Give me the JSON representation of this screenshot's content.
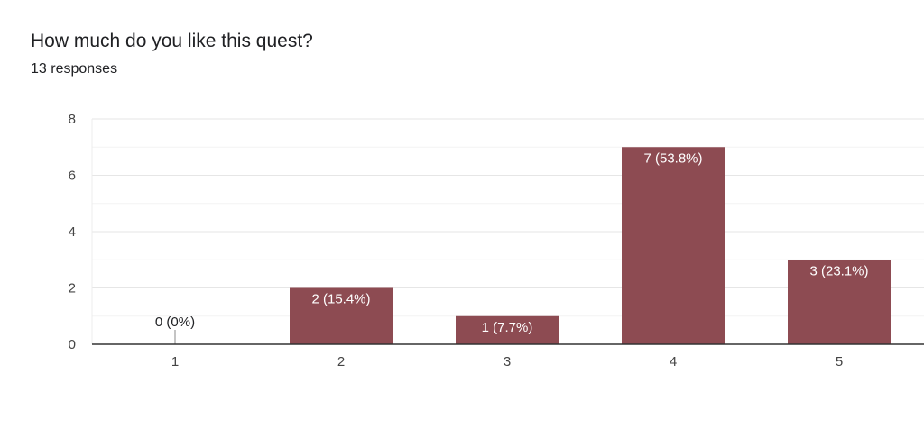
{
  "title": "How much do you like this quest?",
  "subtitle": "13 responses",
  "colors": {
    "bar": "#8d4b52",
    "grid": "#e8e8e8",
    "axis": "#333333",
    "label_inside": "#ffffff",
    "label_outside": "#202124"
  },
  "chart_data": {
    "type": "bar",
    "title": "How much do you like this quest?",
    "subtitle": "13 responses",
    "categories": [
      "1",
      "2",
      "3",
      "4",
      "5"
    ],
    "values": [
      0,
      2,
      1,
      7,
      3
    ],
    "data_labels": [
      "0 (0%)",
      "2 (15.4%)",
      "1 (7.7%)",
      "7 (53.8%)",
      "3 (23.1%)"
    ],
    "ylim": [
      0,
      8
    ],
    "yticks": [
      0,
      2,
      4,
      6,
      8
    ],
    "xlabel": "",
    "ylabel": "",
    "grid": true,
    "legend": "none"
  }
}
